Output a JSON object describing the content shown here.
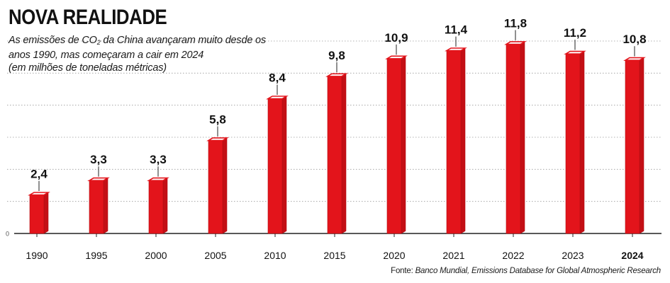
{
  "title": "NOVA REALIDADE",
  "subtitle": {
    "prefix": "As emissões de CO",
    "subscript": "2",
    "rest": " da China avançaram muito desde os anos 1990, mas começaram a cair em 2024",
    "unit_note": "(em milhões de toneladas métricas)"
  },
  "source": {
    "label": "Fonte:",
    "text": "Banco Mundial, Emissions Database for Global Atmospheric Research"
  },
  "colors": {
    "bar_front": "#e3141b",
    "bar_top": "#ffffff",
    "bar_outline": "#b30d13",
    "grid": "#9a9a9a",
    "text": "#111111"
  },
  "chart_data": {
    "type": "bar",
    "categories": [
      "1990",
      "1995",
      "2000",
      "2005",
      "2010",
      "2015",
      "2020",
      "2021",
      "2022",
      "2023",
      "2024"
    ],
    "values": [
      2.4,
      3.3,
      3.3,
      5.8,
      8.4,
      9.8,
      10.9,
      11.4,
      11.8,
      11.2,
      10.8
    ],
    "value_labels": [
      "2,4",
      "3,3",
      "3,3",
      "5,8",
      "8,4",
      "9,8",
      "10,9",
      "11,4",
      "11,8",
      "11,2",
      "10,8"
    ],
    "highlight_category": "2024",
    "y_tick_labels": [
      "0"
    ],
    "ylim": [
      0,
      12
    ],
    "grid": true,
    "gridline_values": [
      2,
      4,
      6,
      8,
      10,
      12
    ],
    "xlabel": "",
    "ylabel": ""
  }
}
